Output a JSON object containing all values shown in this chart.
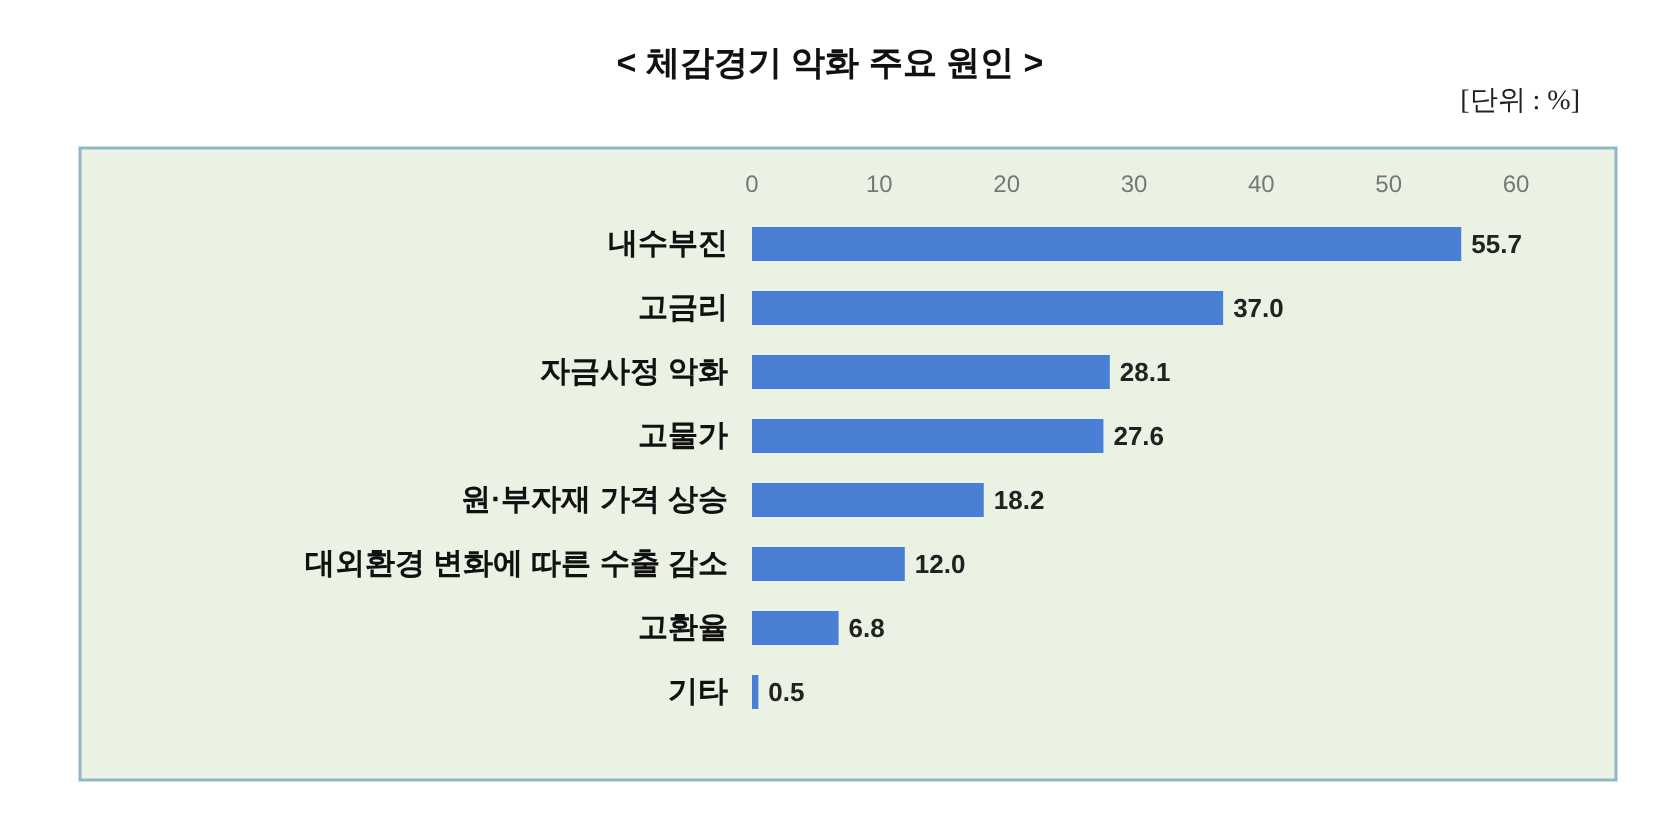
{
  "chart_data": {
    "type": "bar",
    "orientation": "horizontal",
    "title": "< 체감경기 악화 주요 원인 >",
    "annotations": [
      "[단위 : %]"
    ],
    "categories": [
      "내수부진",
      "고금리",
      "자금사정 악화",
      "고물가",
      "원·부자재 가격 상승",
      "대외환경 변화에 따른 수출 감소",
      "고환율",
      "기타"
    ],
    "values": [
      55.7,
      37.0,
      28.1,
      27.6,
      18.2,
      12.0,
      6.8,
      0.5
    ],
    "value_labels": [
      "55.7",
      "37.0",
      "28.1",
      "27.6",
      "18.2",
      "12.0",
      "6.8",
      "0.5"
    ],
    "color": "#4a7fd6",
    "xlim": [
      0,
      60
    ],
    "xticks": [
      0,
      10,
      20,
      30,
      40,
      50,
      60
    ],
    "grid": false
  }
}
